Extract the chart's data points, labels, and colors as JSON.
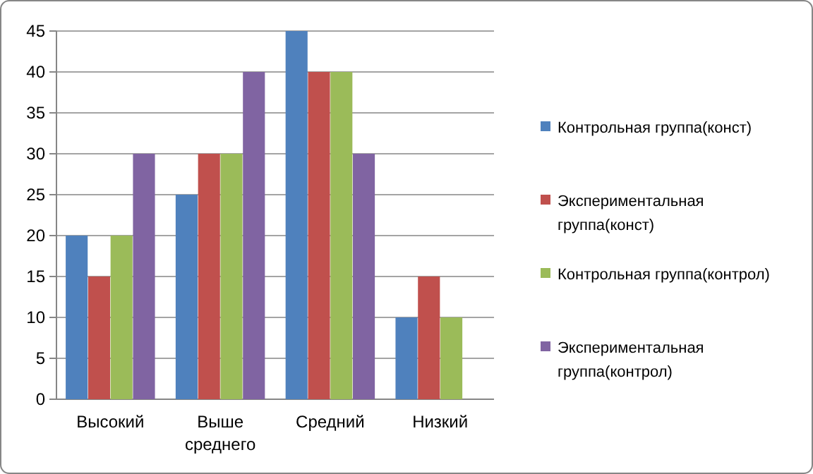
{
  "chart_data": {
    "type": "bar",
    "categories": [
      "Высокий",
      "Выше среднего",
      "Средний",
      "Низкий"
    ],
    "series": [
      {
        "name": "Контрольная группа(конст)",
        "color": "#4f81bd",
        "values": [
          20,
          25,
          45,
          10
        ]
      },
      {
        "name": "Экспериментальная группа(конст)",
        "color": "#c0504d",
        "values": [
          15,
          30,
          40,
          15
        ]
      },
      {
        "name": "Контрольная группа(контрол)",
        "color": "#9bbb59",
        "values": [
          20,
          30,
          40,
          10
        ]
      },
      {
        "name": "Экспериментальная группа(контрол)",
        "color": "#8064a2",
        "values": [
          30,
          40,
          30,
          0
        ]
      }
    ],
    "ylim": [
      0,
      45
    ],
    "yticks": [
      0,
      5,
      10,
      15,
      20,
      25,
      30,
      35,
      40,
      45
    ],
    "grid": "y",
    "legend": "right"
  }
}
